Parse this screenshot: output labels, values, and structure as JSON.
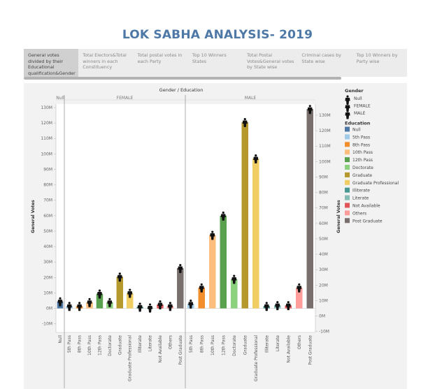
{
  "title": "LOK SABHA ANALYSIS- 2019",
  "tabs": [
    {
      "label": "General votes divided by their Educational qualification&Gender",
      "active": true
    },
    {
      "label": "Total Electors&Total winners in each Constituency",
      "active": false
    },
    {
      "label": "Total postal votes in each Party",
      "active": false
    },
    {
      "label": "Top 10 Winners States",
      "active": false
    },
    {
      "label": "Total Postal Votes&General votes by State wise",
      "active": false
    },
    {
      "label": "Criminal cases by State wise",
      "active": false
    },
    {
      "label": "Top 10 Winners by Party wise",
      "active": false
    }
  ],
  "icons": {
    "person": "person-icon"
  },
  "chart_data": {
    "type": "bar",
    "title": "Gender / Education",
    "ylabel": "General Votes",
    "ylabel_right": "General Votes",
    "ylim": [
      -10,
      135
    ],
    "ylim_right": [
      -10,
      135
    ],
    "yticks": [
      {
        "v": 130,
        "label": "130M"
      },
      {
        "v": 120,
        "label": "120M"
      },
      {
        "v": 110,
        "label": "110M"
      },
      {
        "v": 100,
        "label": "100M"
      },
      {
        "v": 90,
        "label": "90M"
      },
      {
        "v": 80,
        "label": "80M"
      },
      {
        "v": 70,
        "label": "70M"
      },
      {
        "v": 60,
        "label": "60M"
      },
      {
        "v": 50,
        "label": "50M"
      },
      {
        "v": 40,
        "label": "40M"
      },
      {
        "v": 30,
        "label": "30M"
      },
      {
        "v": 20,
        "label": "20M"
      },
      {
        "v": 10,
        "label": "10M"
      },
      {
        "v": 0,
        "label": "0M"
      },
      {
        "v": -10,
        "label": "-10M"
      }
    ],
    "yticks_right": [
      {
        "v": 130,
        "label": "130M"
      },
      {
        "v": 120,
        "label": "120M"
      },
      {
        "v": 110,
        "label": "110M"
      },
      {
        "v": 100,
        "label": "100M"
      },
      {
        "v": 90,
        "label": "90M"
      },
      {
        "v": 80,
        "label": "80M"
      },
      {
        "v": 70,
        "label": "70M"
      },
      {
        "v": 60,
        "label": "60M"
      },
      {
        "v": 50,
        "label": "50M"
      },
      {
        "v": 40,
        "label": "40M"
      },
      {
        "v": 30,
        "label": "30M"
      },
      {
        "v": 20,
        "label": "20M"
      },
      {
        "v": 10,
        "label": "10M"
      },
      {
        "v": 0,
        "label": "0M"
      },
      {
        "v": -10,
        "label": "-10M"
      }
    ],
    "groups": [
      {
        "name": "Null",
        "bars": [
          {
            "category": "Null",
            "value": 4.5
          }
        ]
      },
      {
        "name": "FEMALE",
        "bars": [
          {
            "category": "5th Pass",
            "value": 1.5
          },
          {
            "category": "8th Pass",
            "value": 1.5
          },
          {
            "category": "10th Pass",
            "value": 4.0
          },
          {
            "category": "12th Pass",
            "value": 9.5
          },
          {
            "category": "Doctorate",
            "value": 4.0
          },
          {
            "category": "Graduate",
            "value": 20.5
          },
          {
            "category": "Graduate Professional",
            "value": 10.0
          },
          {
            "category": "Illiterate",
            "value": 1.0
          },
          {
            "category": "Literate",
            "value": 0.5
          },
          {
            "category": "Not Available",
            "value": 2.5
          },
          {
            "category": "Others",
            "value": 1.5
          },
          {
            "category": "Post Graduate",
            "value": 26.0
          }
        ]
      },
      {
        "name": "MALE",
        "bars": [
          {
            "category": "5th Pass",
            "value": 3.0
          },
          {
            "category": "8th Pass",
            "value": 13.5
          },
          {
            "category": "10th Pass",
            "value": 47.5
          },
          {
            "category": "12th Pass",
            "value": 60.0
          },
          {
            "category": "Doctorate",
            "value": 19.0
          },
          {
            "category": "Graduate",
            "value": 120.5
          },
          {
            "category": "Graduate Professional",
            "value": 97.0
          },
          {
            "category": "Illiterate",
            "value": 1.5
          },
          {
            "category": "Literate",
            "value": 2.0
          },
          {
            "category": "Not Available",
            "value": 2.0
          },
          {
            "category": "Others",
            "value": 13.5
          },
          {
            "category": "Post Graduate",
            "value": 129.0
          }
        ]
      }
    ],
    "legend": {
      "placement": "right",
      "gender_title": "Gender",
      "gender": [
        "Null",
        "FEMALE",
        "MALE"
      ],
      "education_title": "Education",
      "education": [
        {
          "name": "Null",
          "color": "#4e79a7"
        },
        {
          "name": "5th Pass",
          "color": "#a0cbe8"
        },
        {
          "name": "8th Pass",
          "color": "#f28e2b"
        },
        {
          "name": "10th Pass",
          "color": "#ffbe7d"
        },
        {
          "name": "12th Pass",
          "color": "#59a14f"
        },
        {
          "name": "Doctorate",
          "color": "#8cd17d"
        },
        {
          "name": "Graduate",
          "color": "#b6992d"
        },
        {
          "name": "Graduate Professional",
          "color": "#f1ce63"
        },
        {
          "name": "Illiterate",
          "color": "#499894"
        },
        {
          "name": "Literate",
          "color": "#86bcb6"
        },
        {
          "name": "Not Available",
          "color": "#e15759"
        },
        {
          "name": "Others",
          "color": "#ff9d9a"
        },
        {
          "name": "Post Graduate",
          "color": "#79706e"
        }
      ]
    },
    "grid": false
  }
}
